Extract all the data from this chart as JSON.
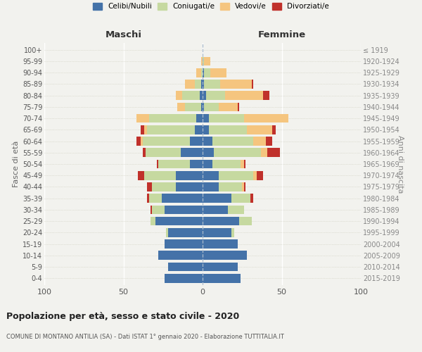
{
  "age_groups": [
    "0-4",
    "5-9",
    "10-14",
    "15-19",
    "20-24",
    "25-29",
    "30-34",
    "35-39",
    "40-44",
    "45-49",
    "50-54",
    "55-59",
    "60-64",
    "65-69",
    "70-74",
    "75-79",
    "80-84",
    "85-89",
    "90-94",
    "95-99",
    "100+"
  ],
  "birth_years": [
    "2015-2019",
    "2010-2014",
    "2005-2009",
    "2000-2004",
    "1995-1999",
    "1990-1994",
    "1985-1989",
    "1980-1984",
    "1975-1979",
    "1970-1974",
    "1965-1969",
    "1960-1964",
    "1955-1959",
    "1950-1954",
    "1945-1949",
    "1940-1944",
    "1935-1939",
    "1930-1934",
    "1925-1929",
    "1920-1924",
    "≤ 1919"
  ],
  "colors": {
    "celibe": "#4472a8",
    "coniugato": "#c6d9a0",
    "vedovo": "#f5c57f",
    "divorziato": "#c0312b"
  },
  "maschi": {
    "celibe": [
      24,
      22,
      28,
      24,
      22,
      30,
      24,
      26,
      17,
      17,
      8,
      14,
      8,
      5,
      4,
      1,
      2,
      1,
      0,
      0,
      0
    ],
    "coniugato": [
      0,
      0,
      0,
      0,
      1,
      3,
      8,
      8,
      15,
      20,
      20,
      22,
      30,
      30,
      30,
      10,
      11,
      4,
      1,
      0,
      0
    ],
    "vedovo": [
      0,
      0,
      0,
      0,
      0,
      0,
      0,
      0,
      0,
      0,
      0,
      0,
      1,
      2,
      8,
      5,
      4,
      6,
      3,
      1,
      0
    ],
    "divorziato": [
      0,
      0,
      0,
      0,
      0,
      0,
      1,
      1,
      3,
      4,
      1,
      2,
      3,
      2,
      0,
      0,
      0,
      0,
      0,
      0,
      0
    ]
  },
  "femmine": {
    "nubile": [
      24,
      22,
      28,
      22,
      18,
      23,
      16,
      18,
      10,
      10,
      6,
      7,
      6,
      4,
      4,
      1,
      2,
      1,
      1,
      0,
      0
    ],
    "coniugata": [
      0,
      0,
      0,
      0,
      2,
      8,
      10,
      12,
      15,
      22,
      18,
      30,
      26,
      24,
      22,
      9,
      12,
      10,
      4,
      1,
      0
    ],
    "vedova": [
      0,
      0,
      0,
      0,
      0,
      0,
      0,
      0,
      1,
      2,
      2,
      4,
      8,
      16,
      28,
      12,
      24,
      20,
      10,
      4,
      0
    ],
    "divorziata": [
      0,
      0,
      0,
      0,
      0,
      0,
      0,
      2,
      1,
      4,
      1,
      8,
      4,
      2,
      0,
      1,
      4,
      1,
      0,
      0,
      0
    ]
  },
  "xlim": 100,
  "title": "Popolazione per età, sesso e stato civile - 2020",
  "subtitle": "COMUNE DI MONTANO ANTILIA (SA) - Dati ISTAT 1° gennaio 2020 - Elaborazione TUTTITALIA.IT",
  "label_maschi": "Maschi",
  "label_femmine": "Femmine",
  "ylabel_left": "Fasce di età",
  "ylabel_right": "Anni di nascita",
  "legend": [
    "Celibi/Nubili",
    "Coniugati/e",
    "Vedovi/e",
    "Divorziati/e"
  ],
  "background_color": "#f2f2ee"
}
